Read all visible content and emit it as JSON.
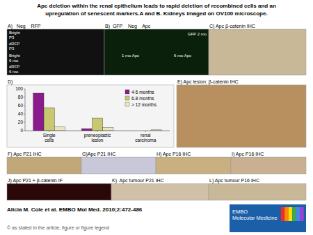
{
  "chart_data": {
    "type": "bar",
    "title": "Apc deletion within the renal epithelium leads to rapid deletion of recombined cells and an",
    "subtitle": "upregulation of senescent markers.A and B. Kidneys imaged on OV100 microscope.",
    "categories": [
      "Single\ncells",
      "preneoplastic\nlesion",
      "renal\ncarcinoma"
    ],
    "series": [
      {
        "name": "4-5 months",
        "color": "#8b1a8b",
        "values": [
          90,
          5,
          0
        ]
      },
      {
        "name": "6-8 months",
        "color": "#c8c870",
        "values": [
          55,
          30,
          0
        ]
      },
      {
        "name": "> 12 months",
        "color": "#e8e8c0",
        "values": [
          10,
          8,
          2
        ]
      }
    ],
    "ylim": [
      0,
      100
    ],
    "yticks": [
      0,
      20,
      40,
      60,
      80,
      100
    ],
    "grid": false,
    "legend": "upper right",
    "annotations": [
      "A)   Neg    RFP",
      "B)  GFP    Neg    Apc",
      "C) Apc β-catenin IHC",
      "E) Apc lesion: β-catenin IHC",
      "D)",
      "F) Apc P21 IHC",
      "G)Apc P21 IHC",
      "H) Apc P16 IHC",
      "I) Apc P16 IHC",
      "J) Apc P21 + β-catenin IF",
      "K)  Apc tumour P21 IHC",
      "L) Apc tumour P16 IHC",
      "Bright\nP3",
      "dRFP\nP3",
      "Bright\n6 mo",
      "dRFP\n6 mo",
      "GFP 2 mo",
      "1 mo Apc",
      "6 mo Apc",
      "Alicia M. Cole et al. EMBO Mol Med. 2010;2:472-486",
      "© as stated in the article, figure or figure legend",
      "EMBO\nMolecular Medicine"
    ]
  }
}
